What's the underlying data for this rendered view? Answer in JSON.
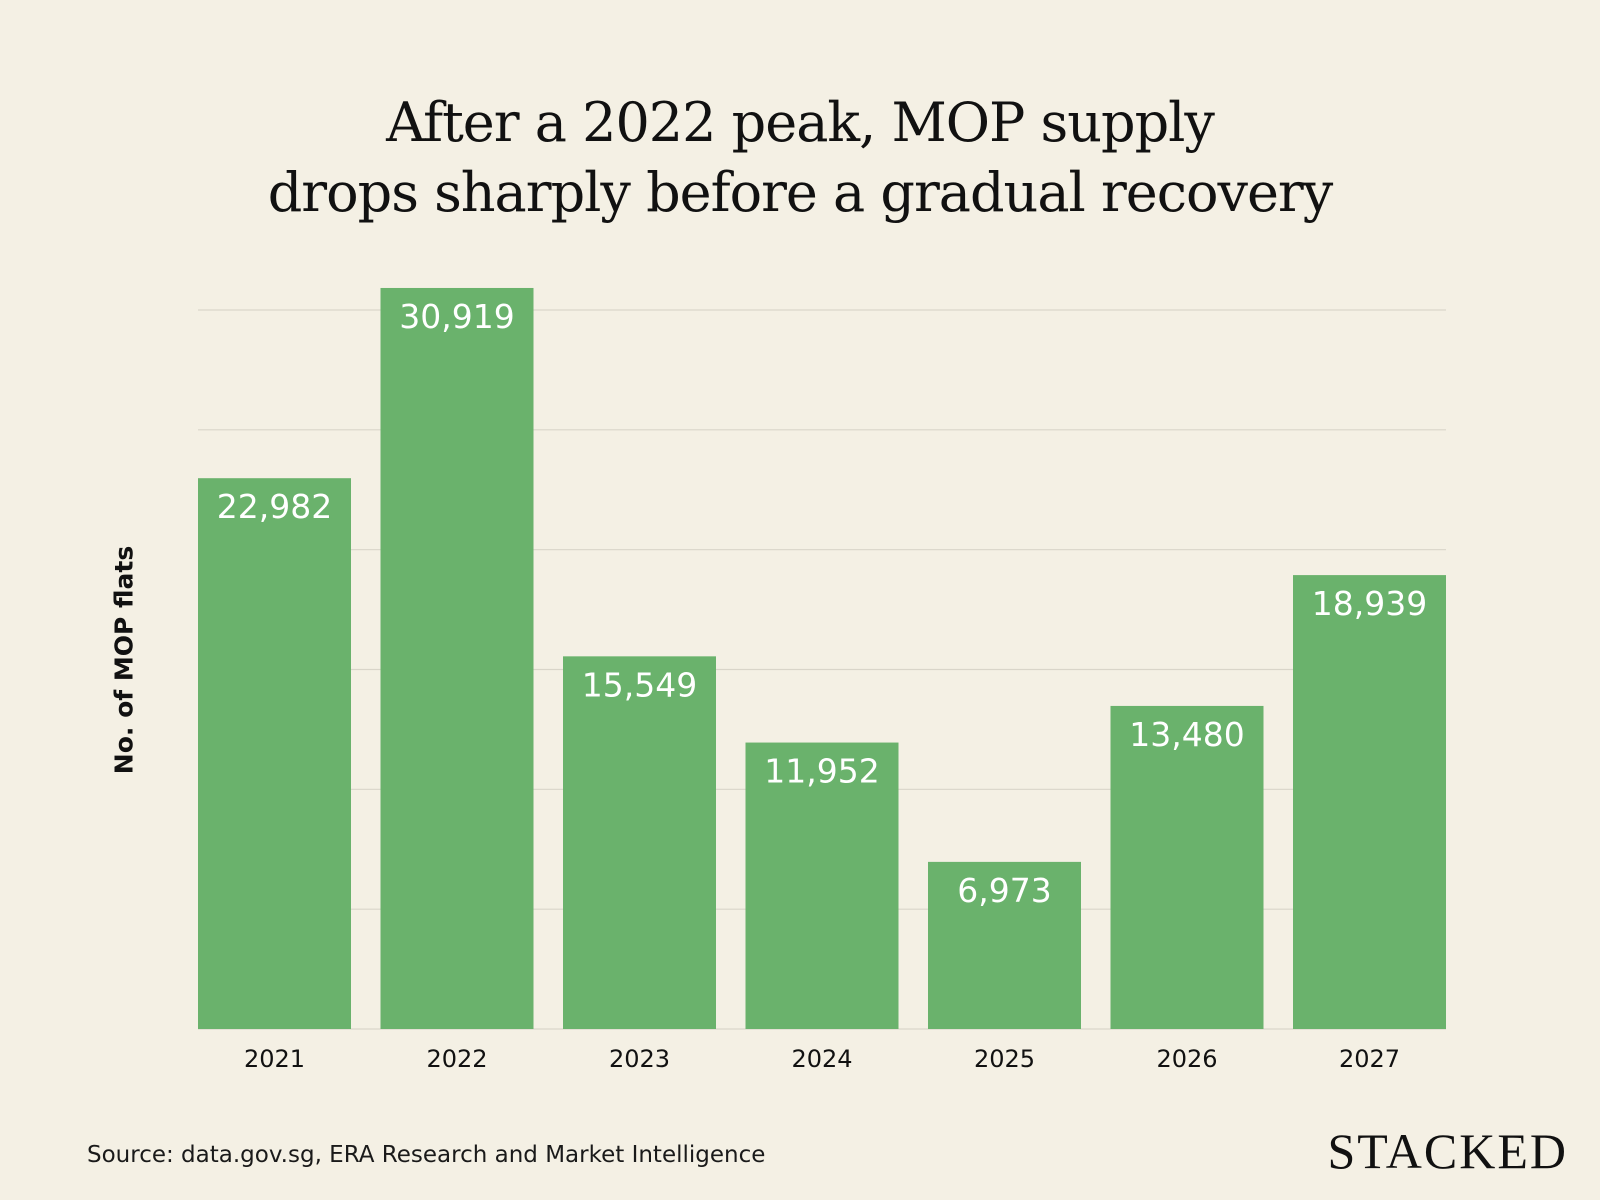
{
  "chart_data": {
    "type": "bar",
    "title": [
      "After a 2022 peak, MOP supply",
      "drops sharply before a gradual recovery"
    ],
    "xlabel": "",
    "ylabel": "No. of MOP flats",
    "categories": [
      "2021",
      "2022",
      "2023",
      "2024",
      "2025",
      "2026",
      "2027"
    ],
    "values": [
      22982,
      30919,
      15549,
      11952,
      6973,
      13480,
      18939
    ],
    "data_labels": [
      "22,982",
      "30,919",
      "15,549",
      "11,952",
      "6,973",
      "13,480",
      "18,939"
    ],
    "ylim": [
      0,
      31000
    ],
    "gridlines": [
      5000,
      10000,
      15000,
      20000,
      25000,
      30000
    ],
    "grid": true,
    "y_tick_labels_shown": false,
    "bar_color": "#6ab26c",
    "label_color": "#ffffff",
    "background": "#f4f0e4"
  },
  "source": "Source: data.gov.sg, ERA Research and Market Intelligence",
  "logo": "STACKED"
}
